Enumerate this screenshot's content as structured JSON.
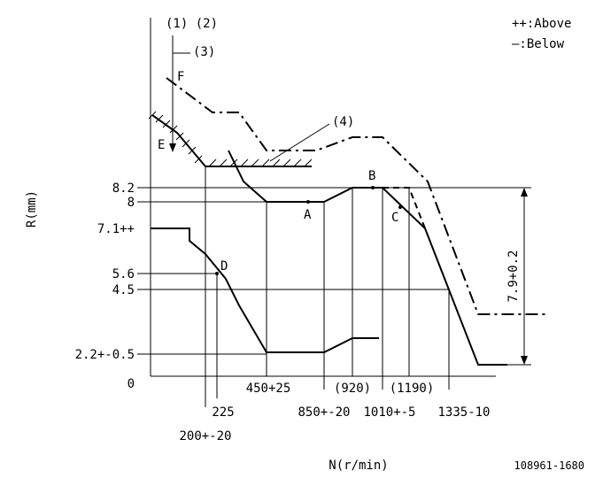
{
  "header": {
    "markers": "(1) (2)",
    "legend_above": "++:Above",
    "legend_below": "—:Below"
  },
  "callouts": {
    "c3": "(3)",
    "c4": "(4)",
    "f": "F",
    "e": "E"
  },
  "points": {
    "a": "A",
    "b": "B",
    "c": "C",
    "d": "D"
  },
  "y_labels": [
    "8.2",
    "8",
    "7.1++",
    "5.6",
    "4.5",
    "2.2+-0.5",
    "0"
  ],
  "x_labels": [
    "200+-20",
    "225",
    "450+25",
    "850+-20",
    "(920)",
    "1010+-5",
    "(1190)",
    "1335-10"
  ],
  "dimension": "7.9+0.2",
  "y_axis_title": "R(mm)",
  "x_axis_title": "N(r/min)",
  "drawing_number": "108961-1680"
}
